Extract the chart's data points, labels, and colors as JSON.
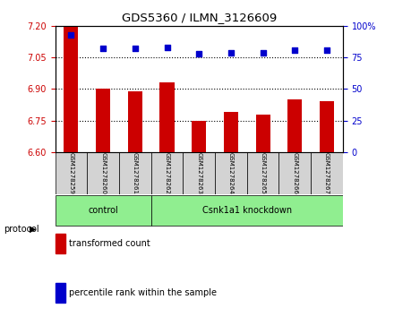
{
  "title": "GDS5360 / ILMN_3126609",
  "samples": [
    "GSM1278259",
    "GSM1278260",
    "GSM1278261",
    "GSM1278262",
    "GSM1278263",
    "GSM1278264",
    "GSM1278265",
    "GSM1278266",
    "GSM1278267"
  ],
  "transformed_count": [
    7.2,
    6.9,
    6.89,
    6.93,
    6.75,
    6.79,
    6.78,
    6.85,
    6.84
  ],
  "percentile_rank": [
    93,
    82,
    82,
    83,
    78,
    79,
    79,
    81,
    81
  ],
  "ylim_left": [
    6.6,
    7.2
  ],
  "ylim_right": [
    0,
    100
  ],
  "yticks_left": [
    6.6,
    6.75,
    6.9,
    7.05,
    7.2
  ],
  "yticks_right": [
    0,
    25,
    50,
    75,
    100
  ],
  "bar_color": "#cc0000",
  "dot_color": "#0000cc",
  "control_indices": [
    0,
    1,
    2
  ],
  "knockdown_indices": [
    3,
    4,
    5,
    6,
    7,
    8
  ],
  "control_label": "control",
  "knockdown_label": "Csnk1a1 knockdown",
  "protocol_label": "protocol",
  "legend_bar": "transformed count",
  "legend_dot": "percentile rank within the sample",
  "group_bg_color": "#90ee90",
  "tick_color_left": "#cc0000",
  "tick_color_right": "#0000cc",
  "sample_box_color": "#d3d3d3"
}
